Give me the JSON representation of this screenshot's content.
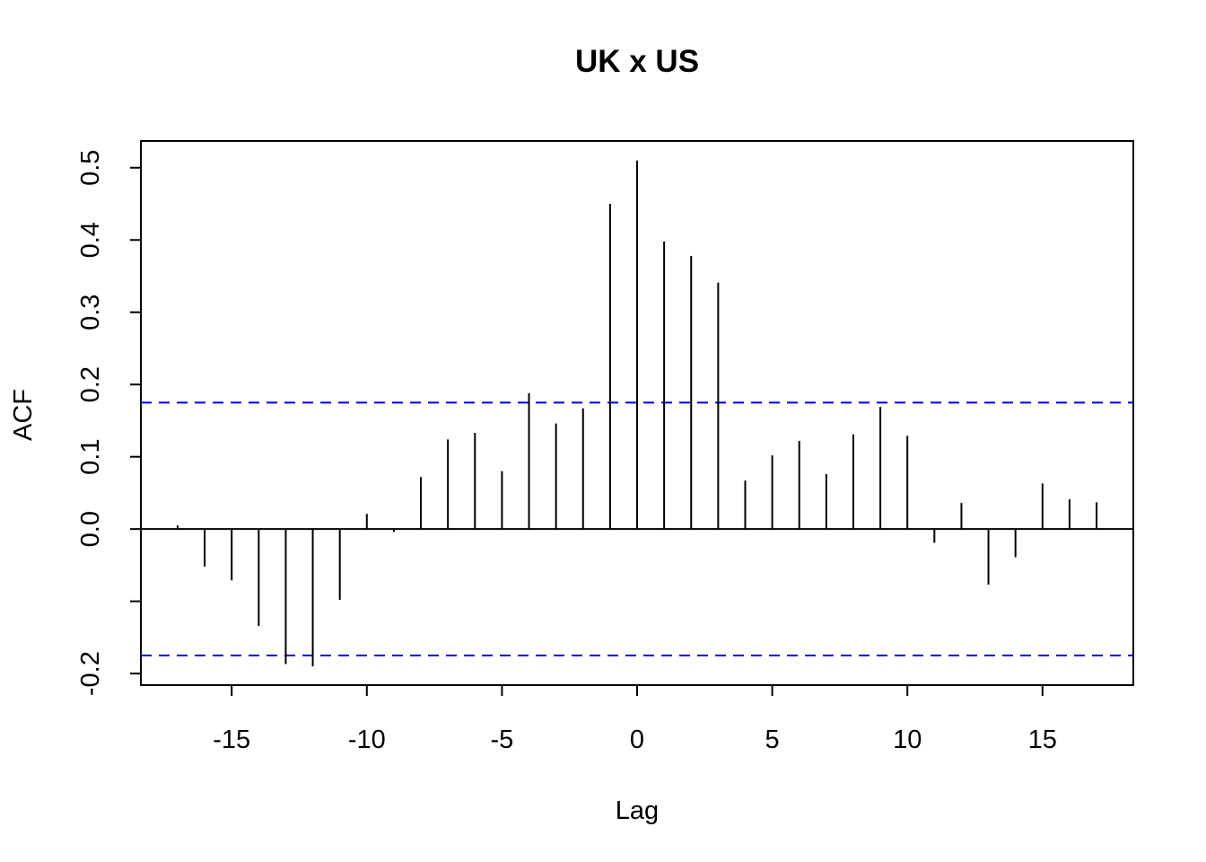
{
  "chart_data": {
    "type": "ccf",
    "title": "UK x US",
    "xlabel": "Lag",
    "ylabel": "ACF",
    "x": [
      -17,
      -16,
      -15,
      -14,
      -13,
      -12,
      -11,
      -10,
      -9,
      -8,
      -7,
      -6,
      -5,
      -4,
      -3,
      -2,
      -1,
      0,
      1,
      2,
      3,
      4,
      5,
      6,
      7,
      8,
      9,
      10,
      11,
      12,
      13,
      14,
      15,
      16,
      17
    ],
    "values": [
      0.005,
      -0.052,
      -0.071,
      -0.134,
      -0.187,
      -0.19,
      -0.098,
      0.021,
      -0.004,
      0.072,
      0.124,
      0.133,
      0.08,
      0.188,
      0.146,
      0.167,
      0.45,
      0.51,
      0.398,
      0.378,
      0.341,
      0.067,
      0.102,
      0.122,
      0.076,
      0.131,
      0.169,
      0.129,
      -0.019,
      0.036,
      -0.077,
      -0.039,
      0.063,
      0.041,
      0.037
    ],
    "color": "#000000",
    "confidence_lines": [
      0.175,
      -0.175
    ],
    "confidence_color": "#0000ee",
    "xlim": [
      -18.36,
      18.36
    ],
    "xticks": [
      -15,
      -10,
      -5,
      0,
      5,
      10,
      15
    ],
    "ylim": [
      -0.216,
      0.537
    ],
    "yticks": [
      {
        "value": -0.2,
        "label": "-0.2"
      },
      {
        "value": -0.1,
        "label": null
      },
      {
        "value": 0,
        "label": "0.0"
      },
      0.1,
      0.2,
      0.3,
      0.4,
      0.5
    ]
  }
}
